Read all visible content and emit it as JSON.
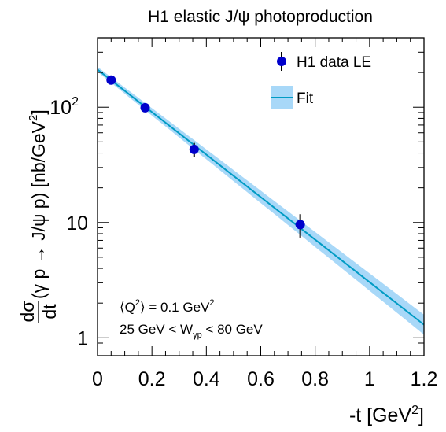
{
  "chart_data": {
    "type": "scatter",
    "title": "H1 elastic J/ψ photoproduction",
    "xlabel": "-t [GeV²]",
    "ylabel_parts": {
      "frac_num": "dσ",
      "frac_den": "dt",
      "process": "(γ p → J/ψ p) [nb/GeV",
      "unit_sup": "2",
      "close": "]"
    },
    "xlim": [
      0,
      1.2
    ],
    "ylim": [
      0.7,
      400
    ],
    "yscale": "log",
    "x_ticks": [
      "0",
      "0.2",
      "0.4",
      "0.6",
      "0.8",
      "1",
      "1.2"
    ],
    "x_tick_values": [
      0,
      0.2,
      0.4,
      0.6,
      0.8,
      1.0,
      1.2
    ],
    "y_ticks": [
      {
        "value": 1,
        "label": "1"
      },
      {
        "value": 10,
        "label": "10"
      },
      {
        "value": 100,
        "label": "10",
        "sup": "2"
      }
    ],
    "grid": false,
    "legend_position": "top-right",
    "legend": [
      {
        "label": "H1 data LE",
        "marker": "point-errorbar",
        "color": "#0000cc"
      },
      {
        "label": "Fit",
        "marker": "line-band",
        "color": "#009bc4",
        "band_color": "#a8d8f8"
      }
    ],
    "series": [
      {
        "name": "H1 data LE",
        "kind": "points",
        "color": "#0000cc",
        "x": [
          0.05,
          0.175,
          0.355,
          0.745
        ],
        "y": [
          172,
          99,
          43,
          9.6
        ],
        "yerr": [
          14,
          6,
          6,
          2.2
        ]
      },
      {
        "name": "Fit",
        "kind": "line",
        "color": "#009bc4",
        "band_color": "#a8d8f8",
        "x": [
          0,
          1.2
        ],
        "y": [
          212,
          1.3
        ],
        "band_rel_low_at_end": 0.82,
        "band_rel_high_at_end": 1.22
      }
    ],
    "annotations": [
      {
        "id": "q2",
        "parts": [
          "⟨Q",
          "2",
          "⟩ = 0.1 GeV",
          "2"
        ]
      },
      {
        "id": "w",
        "parts": [
          "25 GeV < W",
          "γp",
          " < 80 GeV"
        ]
      }
    ]
  }
}
